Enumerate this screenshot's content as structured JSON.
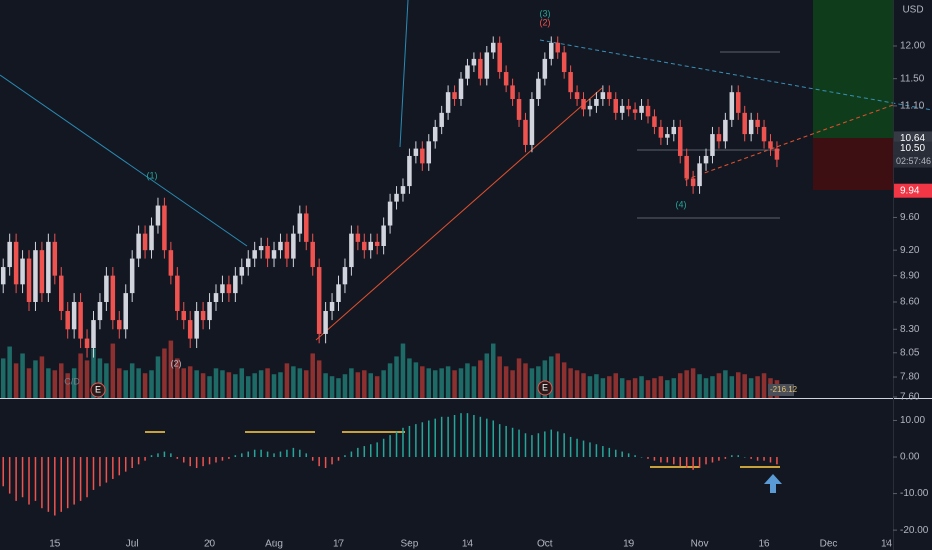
{
  "chart_data": {
    "type": "candlestick",
    "currency": "USD",
    "log_scale": true,
    "ylim": [
      7.59,
      12.74
    ],
    "yticks": [
      {
        "value": 12,
        "label": "12.00"
      },
      {
        "value": 11.5,
        "label": "11.50"
      },
      {
        "value": 11.1,
        "label": "11.10"
      },
      {
        "value": 9.6,
        "label": "9.60"
      },
      {
        "value": 9.2,
        "label": "9.20"
      },
      {
        "value": 8.9,
        "label": "8.90"
      },
      {
        "value": 8.6,
        "label": "8.60"
      },
      {
        "value": 8.3,
        "label": "8.30"
      },
      {
        "value": 8.05,
        "label": "8.05"
      },
      {
        "value": 7.8,
        "label": "7.80"
      },
      {
        "value": 7.6,
        "label": "7.60"
      }
    ],
    "xlim": [
      -0.5,
      138
    ],
    "xticks": [
      {
        "value": 8,
        "label": "15"
      },
      {
        "value": 20,
        "label": "Jul"
      },
      {
        "value": 32,
        "label": "20"
      },
      {
        "value": 42,
        "label": "Aug"
      },
      {
        "value": 52,
        "label": "17"
      },
      {
        "value": 63,
        "label": "Sep"
      },
      {
        "value": 72,
        "label": "14"
      },
      {
        "value": 84,
        "label": "Oct"
      },
      {
        "value": 97,
        "label": "19"
      },
      {
        "value": 108,
        "label": "Nov"
      },
      {
        "value": 118,
        "label": "16"
      },
      {
        "value": 128,
        "label": "Dec"
      },
      {
        "value": 137,
        "label": "14"
      }
    ],
    "up_color": "#d1d4dc",
    "down_color": "#ef5350",
    "open": [
      8.8,
      9.0,
      9.3,
      8.8,
      9.1,
      8.6,
      9.2,
      8.7,
      9.3,
      8.9,
      8.5,
      8.3,
      8.6,
      8.2,
      8.1,
      8.4,
      8.6,
      8.9,
      8.4,
      8.3,
      8.7,
      9.1,
      9.4,
      9.2,
      9.5,
      9.75,
      9.2,
      8.9,
      8.5,
      8.4,
      8.2,
      8.5,
      8.4,
      8.6,
      8.7,
      8.8,
      8.7,
      8.9,
      9.0,
      9.1,
      9.2,
      9.25,
      9.1,
      9.2,
      9.3,
      9.1,
      9.4,
      9.65,
      9.3,
      9.0,
      8.25,
      8.5,
      8.6,
      8.8,
      9.0,
      9.4,
      9.3,
      9.2,
      9.3,
      9.25,
      9.5,
      9.8,
      9.9,
      10.0,
      10.4,
      10.5,
      10.3,
      10.6,
      10.8,
      11.0,
      11.3,
      11.2,
      11.5,
      11.7,
      11.8,
      11.5,
      11.9,
      12.05,
      11.6,
      11.4,
      11.2,
      10.9,
      10.55,
      11.2,
      11.5,
      11.8,
      12.05,
      11.9,
      11.6,
      11.3,
      11.2,
      11.05,
      11.1,
      11.2,
      11.3,
      11.2,
      11.0,
      11.1,
      11.05,
      11.0,
      11.1,
      10.95,
      10.8,
      10.65,
      10.7,
      10.8,
      10.4,
      10.1,
      10.0,
      10.3,
      10.4,
      10.7,
      10.6,
      10.9,
      11.3,
      11.0,
      10.7,
      10.9,
      10.8,
      10.6,
      10.5
    ],
    "high": [
      9.1,
      9.4,
      9.4,
      9.2,
      9.2,
      9.3,
      9.3,
      9.4,
      9.4,
      9.0,
      8.6,
      8.7,
      8.7,
      8.3,
      8.5,
      8.7,
      9.0,
      9.0,
      8.5,
      8.8,
      9.2,
      9.5,
      9.5,
      9.6,
      9.85,
      9.85,
      9.3,
      9.0,
      8.6,
      8.5,
      8.6,
      8.6,
      8.7,
      8.8,
      8.9,
      8.9,
      9.0,
      9.1,
      9.2,
      9.3,
      9.35,
      9.35,
      9.3,
      9.4,
      9.4,
      9.5,
      9.75,
      9.75,
      9.4,
      9.1,
      8.6,
      8.7,
      8.9,
      9.1,
      9.5,
      9.5,
      9.4,
      9.4,
      9.4,
      9.6,
      9.9,
      10.0,
      10.1,
      10.5,
      10.6,
      10.6,
      10.7,
      10.9,
      11.1,
      11.4,
      11.4,
      11.6,
      11.8,
      11.9,
      11.9,
      12.0,
      12.15,
      12.15,
      11.7,
      11.5,
      11.3,
      11.0,
      11.3,
      11.6,
      11.9,
      12.15,
      12.15,
      12.0,
      11.7,
      11.4,
      11.3,
      11.2,
      11.3,
      11.4,
      11.4,
      11.3,
      11.2,
      11.2,
      11.15,
      11.2,
      11.2,
      11.05,
      10.9,
      10.8,
      10.9,
      10.9,
      10.5,
      10.2,
      10.4,
      10.5,
      10.8,
      10.8,
      11.0,
      11.4,
      11.4,
      11.1,
      11.0,
      11.0,
      10.9,
      10.7,
      10.6
    ],
    "low": [
      8.7,
      8.9,
      8.7,
      8.7,
      8.5,
      8.5,
      8.6,
      8.6,
      8.8,
      8.4,
      8.2,
      8.2,
      8.1,
      8.0,
      8.0,
      8.3,
      8.5,
      8.3,
      8.2,
      8.2,
      8.6,
      9.0,
      9.1,
      9.1,
      9.4,
      9.1,
      8.8,
      8.4,
      8.3,
      8.1,
      8.1,
      8.3,
      8.3,
      8.5,
      8.6,
      8.6,
      8.6,
      8.8,
      8.9,
      9.0,
      9.1,
      9.0,
      9.0,
      9.1,
      9.0,
      9.0,
      9.3,
      9.2,
      8.9,
      8.15,
      8.15,
      8.4,
      8.5,
      8.7,
      8.9,
      9.2,
      9.1,
      9.1,
      9.15,
      9.15,
      9.4,
      9.7,
      9.8,
      9.9,
      10.3,
      10.2,
      10.2,
      10.5,
      10.7,
      10.9,
      11.1,
      11.1,
      11.4,
      11.6,
      11.4,
      11.4,
      11.8,
      11.5,
      11.3,
      11.1,
      10.8,
      10.45,
      10.45,
      11.1,
      11.4,
      11.7,
      11.8,
      11.5,
      11.2,
      11.1,
      10.95,
      10.95,
      11.0,
      11.1,
      11.1,
      10.9,
      10.9,
      10.95,
      10.9,
      10.9,
      10.85,
      10.7,
      10.55,
      10.55,
      10.6,
      10.3,
      10.0,
      9.9,
      9.9,
      10.2,
      10.3,
      10.5,
      10.5,
      10.8,
      10.9,
      10.6,
      10.6,
      10.7,
      10.5,
      10.4,
      10.25
    ],
    "close": [
      9.0,
      9.3,
      8.8,
      9.1,
      8.6,
      9.2,
      8.7,
      9.3,
      8.9,
      8.5,
      8.3,
      8.6,
      8.2,
      8.1,
      8.4,
      8.6,
      8.9,
      8.4,
      8.3,
      8.7,
      9.1,
      9.4,
      9.2,
      9.5,
      9.75,
      9.2,
      8.9,
      8.5,
      8.4,
      8.2,
      8.5,
      8.4,
      8.6,
      8.7,
      8.8,
      8.7,
      8.9,
      9.0,
      9.1,
      9.2,
      9.25,
      9.1,
      9.2,
      9.3,
      9.1,
      9.4,
      9.65,
      9.3,
      9.0,
      8.25,
      8.5,
      8.6,
      8.8,
      9.0,
      9.4,
      9.3,
      9.2,
      9.3,
      9.25,
      9.5,
      9.8,
      9.9,
      10.0,
      10.4,
      10.5,
      10.3,
      10.6,
      10.8,
      11.0,
      11.3,
      11.2,
      11.5,
      11.7,
      11.8,
      11.5,
      11.9,
      12.05,
      11.6,
      11.4,
      11.2,
      10.9,
      10.55,
      11.2,
      11.5,
      11.8,
      12.05,
      11.9,
      11.6,
      11.3,
      11.2,
      11.05,
      11.1,
      11.2,
      11.3,
      11.2,
      11.0,
      11.1,
      11.05,
      11.0,
      11.1,
      10.95,
      10.8,
      10.65,
      10.7,
      10.8,
      10.4,
      10.1,
      10.0,
      10.3,
      10.4,
      10.7,
      10.6,
      10.9,
      11.3,
      11.0,
      10.7,
      10.9,
      10.8,
      10.6,
      10.5,
      10.35
    ],
    "volume": {
      "lim": [
        0,
        200
      ],
      "up_color": "#1e6a66",
      "down_color": "#8c3030",
      "label": -216.12,
      "values": [
        40,
        52,
        35,
        45,
        30,
        38,
        42,
        30,
        28,
        35,
        25,
        30,
        45,
        38,
        50,
        40,
        35,
        55,
        30,
        28,
        35,
        30,
        25,
        28,
        42,
        50,
        58,
        40,
        30,
        32,
        28,
        25,
        22,
        30,
        28,
        26,
        24,
        30,
        22,
        25,
        28,
        30,
        24,
        26,
        35,
        32,
        30,
        28,
        45,
        38,
        25,
        22,
        20,
        24,
        30,
        26,
        28,
        25,
        22,
        28,
        35,
        42,
        55,
        40,
        36,
        32,
        30,
        28,
        30,
        32,
        28,
        30,
        35,
        32,
        38,
        45,
        55,
        42,
        32,
        28,
        40,
        35,
        30,
        32,
        38,
        42,
        45,
        36,
        30,
        28,
        25,
        22,
        24,
        20,
        22,
        25,
        20,
        18,
        20,
        22,
        18,
        20,
        22,
        18,
        20,
        25,
        28,
        30,
        24,
        20,
        22,
        25,
        28,
        22,
        26,
        24,
        20,
        22,
        25,
        20,
        18
      ]
    },
    "price_markers": [
      {
        "value": 10.64,
        "label": "10.64",
        "color": "#363a45"
      },
      {
        "value": 10.5,
        "label": "10.50",
        "color": "#2a2e39"
      },
      {
        "value": 9.94,
        "label": "9.94",
        "color": "#f23645"
      }
    ],
    "countdown": "02:57:46",
    "annotations": [
      "(1)",
      "(2)",
      "(3)",
      "(2)",
      "(4)",
      "C/D",
      "E",
      "E"
    ],
    "oscillator": {
      "ylim": [
        -22.7,
        15.6
      ],
      "up_color": "#26a69a",
      "down_color": "#ef5350",
      "yticks": [
        {
          "value": 10,
          "label": "10.00"
        },
        {
          "value": 0,
          "label": "0.00"
        },
        {
          "value": -10,
          "label": "-10.00"
        },
        {
          "value": -20,
          "label": "-20.00"
        }
      ],
      "values": [
        -8,
        -10,
        -12,
        -11,
        -13,
        -12,
        -14,
        -15,
        -16,
        -15,
        -14,
        -13,
        -12,
        -11,
        -9,
        -8,
        -7,
        -6,
        -5,
        -4,
        -3,
        -2,
        -1,
        0.5,
        1,
        1.5,
        1,
        -0.5,
        -1.5,
        -2.5,
        -3,
        -2.5,
        -2,
        -1.5,
        -1,
        -0.5,
        0.5,
        1,
        1.5,
        2,
        2,
        1.5,
        1,
        1.5,
        2,
        2.5,
        2,
        1,
        -1,
        -2.5,
        -3,
        -2,
        -1,
        0.5,
        1.5,
        2.5,
        3,
        3.5,
        4,
        5,
        6,
        7,
        8,
        8.5,
        9,
        9.5,
        10,
        10.5,
        11,
        11,
        11.5,
        12,
        12,
        11.5,
        11,
        10.5,
        10,
        9,
        8.5,
        8,
        7.5,
        6.5,
        6,
        6.5,
        7,
        7.5,
        7,
        6.5,
        5.5,
        5,
        4.5,
        4,
        3.5,
        3,
        2.5,
        2,
        1.5,
        1,
        0.5,
        0,
        -0.5,
        -1,
        -1.5,
        -1.5,
        -2,
        -2.5,
        -3,
        -3.5,
        -3,
        -2,
        -1.5,
        -1,
        -0.5,
        0.5,
        0.5,
        0,
        -0.5,
        -1,
        -1,
        -1.5,
        -2
      ]
    }
  }
}
